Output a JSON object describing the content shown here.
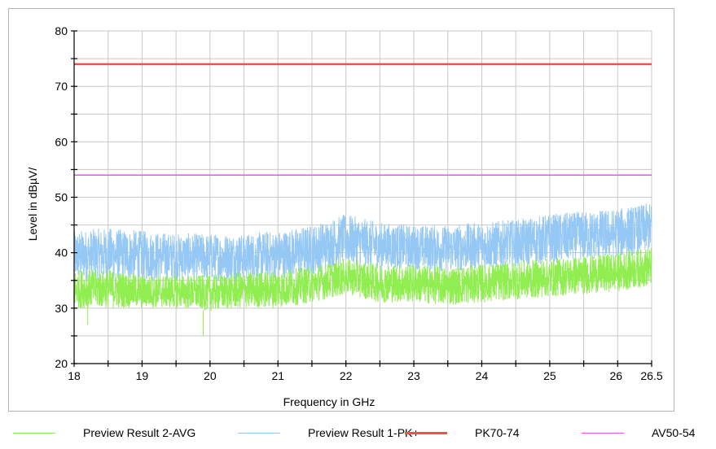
{
  "chart_data": {
    "type": "line",
    "xlabel": "Frequency in GHz",
    "ylabel": "Level in dBµV/",
    "xlim": [
      18,
      26.5
    ],
    "ylim": [
      20,
      80
    ],
    "x_ticks": [
      "18",
      "19",
      "20",
      "21",
      "22",
      "23",
      "24",
      "25",
      "26",
      "26.5"
    ],
    "y_ticks": [
      "20",
      "30",
      "40",
      "50",
      "60",
      "70",
      "80"
    ],
    "grid": true,
    "legend_position": "bottom",
    "series": [
      {
        "name": "Preview Result 2-AVG",
        "color": "#90ee50",
        "style": "noisy-trace",
        "x": [
          18,
          18.5,
          19,
          19.5,
          20,
          20.5,
          21,
          21.5,
          22,
          22.5,
          23,
          23.5,
          24,
          24.5,
          25,
          25.5,
          26,
          26.5
        ],
        "y_low": [
          30,
          30,
          30,
          30,
          29.5,
          30,
          30,
          31,
          32.5,
          31,
          31,
          30.5,
          31,
          31.5,
          32,
          32.5,
          33,
          34
        ],
        "y_high": [
          37,
          37,
          36,
          36,
          36,
          36.5,
          37,
          37.5,
          39,
          38,
          38,
          37.5,
          38,
          38.5,
          39,
          39.5,
          40,
          41
        ],
        "y_min_spikes": [
          [
            19.9,
            25
          ],
          [
            18.2,
            27
          ]
        ]
      },
      {
        "name": "Preview Result 1-PK+",
        "color": "#96c8f5",
        "style": "noisy-trace",
        "x": [
          18,
          18.5,
          19,
          19.5,
          20,
          20.5,
          21,
          21.5,
          22,
          22.5,
          23,
          23.5,
          24,
          24.5,
          25,
          25.5,
          26,
          26.5
        ],
        "y_low": [
          35,
          35,
          35,
          35,
          35,
          35,
          35,
          36,
          38,
          37,
          37,
          36.5,
          37,
          37.5,
          38,
          38.5,
          39,
          40
        ],
        "y_high": [
          44,
          44.5,
          44,
          43.5,
          43.5,
          43.5,
          44,
          45,
          47,
          45.5,
          45,
          45,
          45.5,
          46,
          47,
          47.5,
          48,
          49
        ]
      },
      {
        "name": "PK70-74",
        "color": "#f05050",
        "style": "limit-line",
        "x": [
          18,
          26.5
        ],
        "y": [
          74,
          74
        ]
      },
      {
        "name": "AV50-54",
        "color": "#f050f0",
        "style": "limit-line",
        "x": [
          18,
          26.5
        ],
        "y": [
          54,
          54
        ]
      }
    ]
  }
}
